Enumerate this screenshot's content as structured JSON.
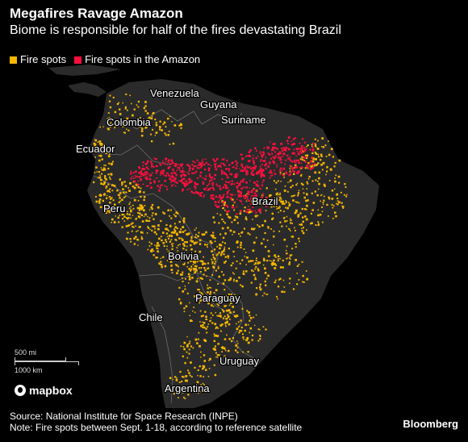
{
  "header": {
    "title": "Megafires Ravage Amazon",
    "subtitle": "Biome is responsible for half of the fires devastating Brazil"
  },
  "legend": [
    {
      "label": "Fire spots",
      "color": "#f5b700"
    },
    {
      "label": "Fire spots in the Amazon",
      "color": "#ff0f3f"
    }
  ],
  "colors": {
    "land": "#2a2a2a",
    "border": "#6b6b6b",
    "fire": "#f5b700",
    "amazon_fire": "#ff0f3f"
  },
  "places": [
    "Venezuela",
    "Guyana",
    "Colombia",
    "Suriname",
    "Ecuador",
    "Brazil",
    "Peru",
    "Bolivia",
    "Paraguay",
    "Chile",
    "Uruguay",
    "Argentina"
  ],
  "scale": {
    "imperial": "500 mi",
    "metric": "1000 km"
  },
  "attribution": {
    "mapbox": "mapbox"
  },
  "footer": {
    "source": "Source: National Institute for Space Research (INPE)",
    "note": "Note: Fire spots between Sept. 1-18, according to reference satellite"
  },
  "brand": "Bloomberg"
}
